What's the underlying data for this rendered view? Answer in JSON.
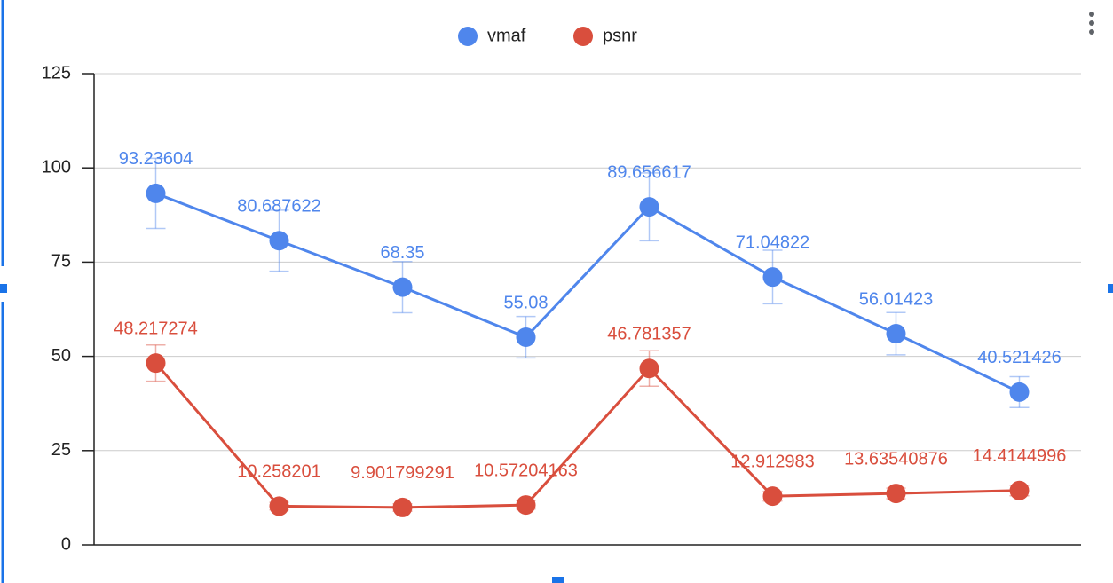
{
  "chart_data": {
    "type": "line",
    "categories": [
      null,
      null,
      null,
      null,
      null,
      null,
      null,
      null
    ],
    "series": [
      {
        "name": "vmaf",
        "color": "#4f86ec",
        "values": [
          93.23604,
          80.687622,
          68.35,
          55.08,
          89.656617,
          71.04822,
          56.01423,
          40.521426
        ],
        "errors": [
          9.3,
          8.1,
          6.8,
          5.5,
          9.0,
          7.1,
          5.6,
          4.1
        ]
      },
      {
        "name": "psnr",
        "color": "#d94e3d",
        "values": [
          48.217274,
          10.258201,
          9.901799291,
          10.57204163,
          46.781357,
          12.912983,
          13.63540876,
          14.4144996
        ],
        "errors": [
          4.8,
          1.0,
          1.0,
          1.1,
          4.7,
          1.3,
          1.4,
          1.4
        ]
      }
    ],
    "ylim": [
      0,
      125
    ],
    "yticks": [
      0,
      25,
      50,
      75,
      100,
      125
    ],
    "grid": true,
    "legend": "top"
  }
}
